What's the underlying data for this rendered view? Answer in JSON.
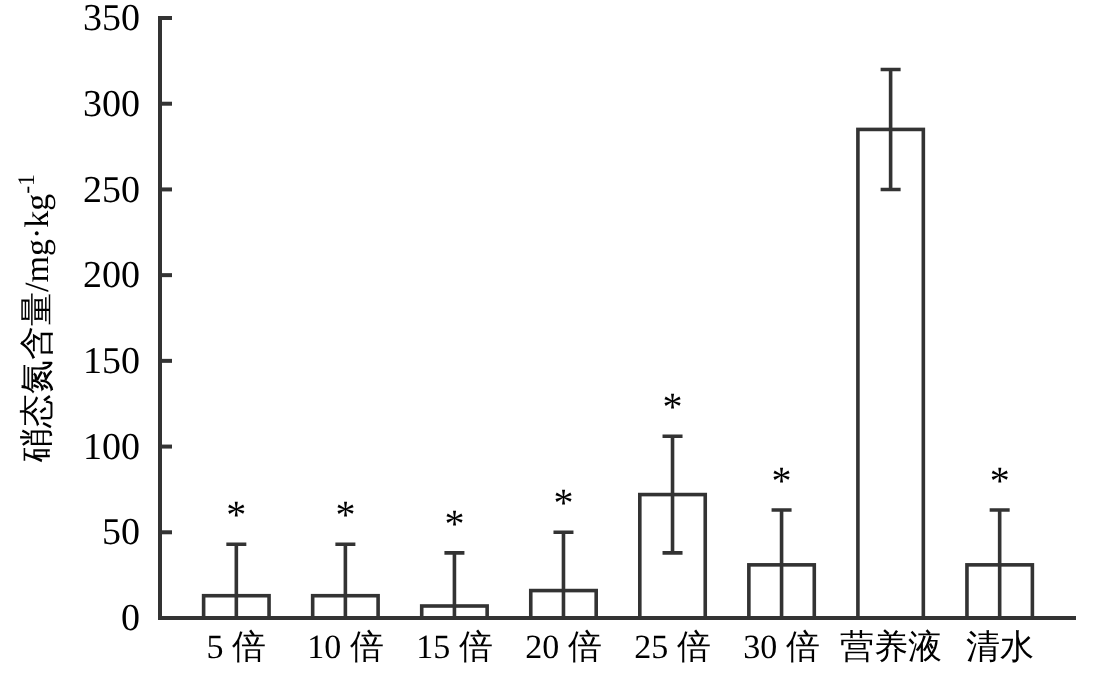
{
  "chart_data": {
    "type": "bar",
    "ylabel": "硝态氮含量/mg·kg$^{-1}$",
    "categories": [
      "5 倍",
      "10 倍",
      "15 倍",
      "20 倍",
      "25 倍",
      "30 倍",
      "营养液",
      "清水"
    ],
    "values": [
      13,
      13,
      7,
      16,
      72,
      31,
      285,
      31
    ],
    "errors": [
      [
        0,
        43
      ],
      [
        0,
        43
      ],
      [
        0,
        38
      ],
      [
        0,
        50
      ],
      34,
      [
        0,
        63
      ],
      35,
      [
        0,
        63
      ]
    ],
    "color": "#ffffff",
    "ylim": [
      0,
      350
    ],
    "yticks": [
      0,
      50,
      100,
      150,
      200,
      250,
      300,
      350
    ],
    "grid": false,
    "annotations": [
      {
        "text": "*",
        "x": "5 倍",
        "y": 43
      },
      {
        "text": "*",
        "x": "10 倍",
        "y": 43
      },
      {
        "text": "*",
        "x": "15 倍",
        "y": 38
      },
      {
        "text": "*",
        "x": "20 倍",
        "y": 50
      },
      {
        "text": "*",
        "x": "25 倍",
        "y": 106
      },
      {
        "text": "*",
        "x": "30 倍",
        "y": 63
      },
      {
        "text": "*",
        "x": "清水",
        "y": 63
      }
    ]
  }
}
